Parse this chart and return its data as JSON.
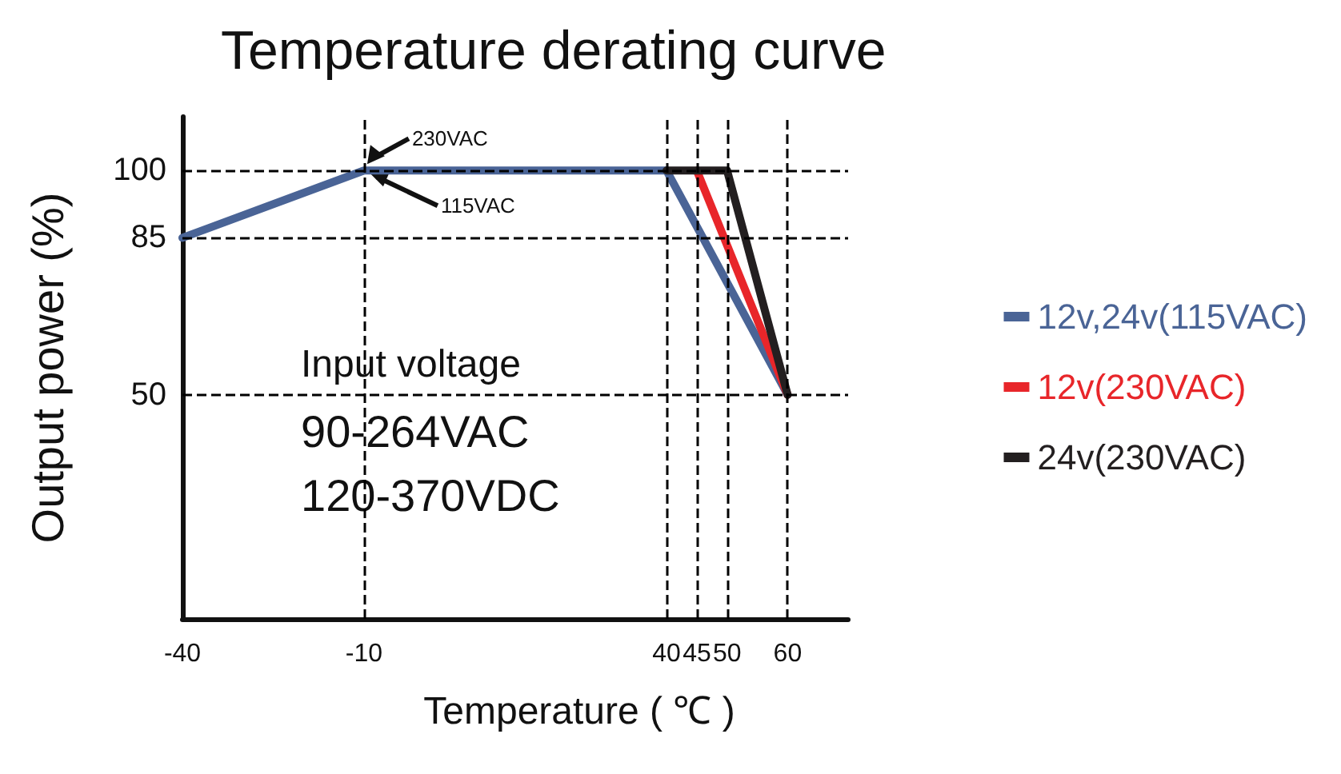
{
  "chart_data": {
    "type": "line",
    "title": "Temperature derating curve",
    "xlabel": "Temperature ( ℃ )",
    "ylabel": "Output power (%)",
    "xlim": [
      -40,
      70
    ],
    "xticks": [
      -40,
      -10,
      40,
      45,
      50,
      60
    ],
    "ylim": [
      0,
      112
    ],
    "yticks": [
      50,
      85,
      100
    ],
    "series": [
      {
        "name": "12v,24v(115VAC)",
        "color": "#4a6496",
        "x": [
          -40,
          -10,
          40,
          60
        ],
        "values": [
          85,
          100,
          100,
          50
        ]
      },
      {
        "name": "12v(230VAC)",
        "color": "#e8262a",
        "x": [
          45,
          60
        ],
        "values": [
          100,
          50
        ]
      },
      {
        "name": "24v(230VAC)",
        "color": "#231f20",
        "x": [
          40,
          50,
          60
        ],
        "values": [
          100,
          100,
          50
        ]
      }
    ],
    "ref_lines": [
      {
        "axis": "y",
        "value": 100,
        "color": "#000000",
        "line_style": "dashed"
      },
      {
        "axis": "y",
        "value": 85,
        "color": "#000000",
        "line_style": "dashed"
      },
      {
        "axis": "y",
        "value": 50,
        "color": "#000000",
        "line_style": "dashed"
      },
      {
        "axis": "x",
        "value": -10,
        "color": "#000000",
        "line_style": "dashed"
      },
      {
        "axis": "x",
        "value": 40,
        "color": "#000000",
        "line_style": "dashed"
      },
      {
        "axis": "x",
        "value": 45,
        "color": "#000000",
        "line_style": "dashed"
      },
      {
        "axis": "x",
        "value": 50,
        "color": "#000000",
        "line_style": "dashed"
      },
      {
        "axis": "x",
        "value": 60,
        "color": "#000000",
        "line_style": "dashed"
      }
    ],
    "annotations": [
      {
        "text": "230VAC",
        "x": -10,
        "y": 100
      },
      {
        "text": "115VAC",
        "x": -10,
        "y": 100
      },
      "Input voltage",
      "90-264VAC",
      "120-370VDC"
    ],
    "legend": "right",
    "grid": false,
    "marker": "none",
    "line_style": "solid"
  }
}
